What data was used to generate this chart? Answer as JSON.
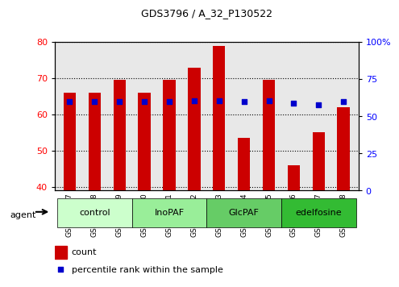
{
  "title": "GDS3796 / A_32_P130522",
  "samples": [
    "GSM520257",
    "GSM520258",
    "GSM520259",
    "GSM520260",
    "GSM520261",
    "GSM520262",
    "GSM520263",
    "GSM520264",
    "GSM520265",
    "GSM520266",
    "GSM520267",
    "GSM520268"
  ],
  "counts": [
    66,
    66,
    69.5,
    66,
    69.5,
    73,
    79,
    53.5,
    69.5,
    46,
    55,
    62
  ],
  "percentiles": [
    60,
    60,
    60,
    60,
    60,
    60.5,
    60.5,
    60,
    60.5,
    59,
    57.5,
    60
  ],
  "ylim_left": [
    39,
    80
  ],
  "ylim_right": [
    0,
    100
  ],
  "yticks_left": [
    40,
    50,
    60,
    70,
    80
  ],
  "yticks_right": [
    0,
    25,
    50,
    75,
    100
  ],
  "ytick_labels_right": [
    "0",
    "25",
    "50",
    "75",
    "100%"
  ],
  "bar_color": "#cc0000",
  "dot_color": "#0000cc",
  "grid_color": "#000000",
  "bar_width": 0.5,
  "groups": [
    {
      "label": "control",
      "start": 0,
      "end": 3,
      "color": "#ccffcc"
    },
    {
      "label": "InoPAF",
      "start": 3,
      "end": 6,
      "color": "#99ee99"
    },
    {
      "label": "GlcPAF",
      "start": 6,
      "end": 9,
      "color": "#66cc66"
    },
    {
      "label": "edelfosine",
      "start": 9,
      "end": 12,
      "color": "#33bb33"
    }
  ],
  "agent_label": "agent",
  "legend_count_label": "count",
  "legend_pct_label": "percentile rank within the sample",
  "plot_bg": "#f0f0f0",
  "spine_color": "#000000"
}
